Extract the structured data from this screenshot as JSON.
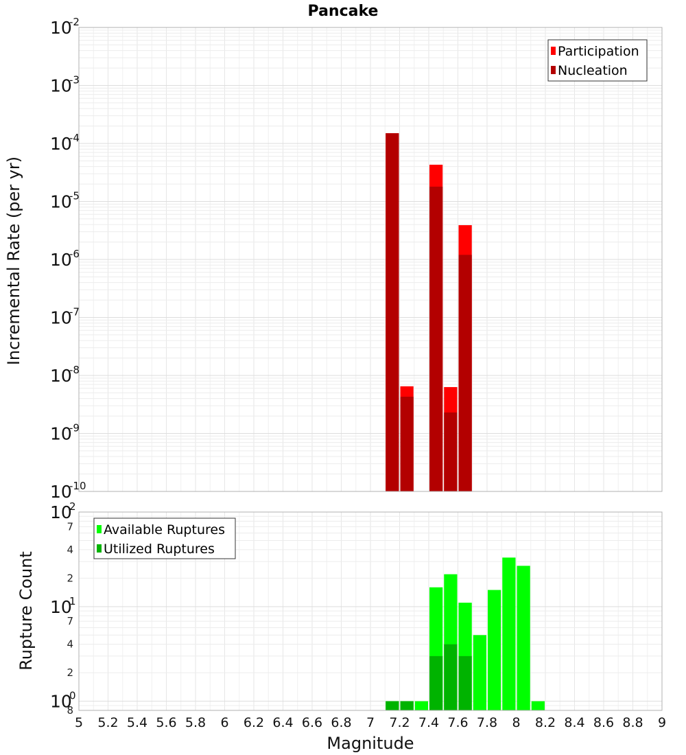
{
  "chart_data": [
    {
      "type": "bar",
      "title": "Pancake",
      "xlabel": "",
      "ylabel": "Incremental Rate (per yr)",
      "yscale": "log",
      "ylim": [
        1e-10,
        0.01
      ],
      "xlim": [
        5,
        9
      ],
      "yticks": [
        {
          "base": "10",
          "exp": "-2",
          "value": 0.01
        },
        {
          "base": "10",
          "exp": "-3",
          "value": 0.001
        },
        {
          "base": "10",
          "exp": "-4",
          "value": 0.0001
        },
        {
          "base": "10",
          "exp": "-5",
          "value": 1e-05
        },
        {
          "base": "10",
          "exp": "-6",
          "value": 1e-06
        },
        {
          "base": "10",
          "exp": "-7",
          "value": 1e-07
        },
        {
          "base": "10",
          "exp": "-8",
          "value": 1e-08
        },
        {
          "base": "10",
          "exp": "-9",
          "value": 1e-09
        },
        {
          "base": "10",
          "exp": "-10",
          "value": 1e-10
        }
      ],
      "legend": {
        "position": "top-right",
        "entries": [
          {
            "label": "Participation",
            "color": "#ff0000"
          },
          {
            "label": "Nucleation",
            "color": "#b30000"
          }
        ]
      },
      "series": [
        {
          "name": "Participation",
          "color": "#ff0000",
          "x": [
            7.15,
            7.25,
            7.45,
            7.55,
            7.65
          ],
          "values": [
            0.00015,
            6.5e-09,
            4.3e-05,
            6.3e-09,
            3.9e-06
          ]
        },
        {
          "name": "Nucleation",
          "color": "#b30000",
          "x": [
            7.15,
            7.25,
            7.45,
            7.55,
            7.65
          ],
          "values": [
            0.00015,
            4.3e-09,
            1.8e-05,
            2.3e-09,
            1.2e-06
          ]
        }
      ]
    },
    {
      "type": "bar",
      "title": "",
      "xlabel": "Magnitude",
      "ylabel": "Rupture Count",
      "yscale": "log",
      "ylim": [
        0.8,
        100
      ],
      "xlim": [
        5,
        9
      ],
      "xticks": [
        "5",
        "5.2",
        "5.4",
        "5.6",
        "5.8",
        "6",
        "6.2",
        "6.4",
        "6.6",
        "6.8",
        "7",
        "7.2",
        "7.4",
        "7.6",
        "7.8",
        "8",
        "8.2",
        "8.4",
        "8.6",
        "8.8",
        "9"
      ],
      "yticks": [
        {
          "base": "10",
          "exp": "2",
          "value": 100
        },
        {
          "base": "10",
          "exp": "1",
          "value": 10
        },
        {
          "base": "10",
          "exp": "0",
          "value": 1
        }
      ],
      "yminor_labels": [
        {
          "label": "7",
          "value": 70
        },
        {
          "label": "4",
          "value": 40
        },
        {
          "label": "2",
          "value": 20
        },
        {
          "label": "7",
          "value": 7
        },
        {
          "label": "4",
          "value": 4
        },
        {
          "label": "2",
          "value": 2
        },
        {
          "label": "8",
          "value": 0.8
        }
      ],
      "legend": {
        "position": "top-left",
        "entries": [
          {
            "label": "Available Ruptures",
            "color": "#00ff00"
          },
          {
            "label": "Utilized Ruptures",
            "color": "#00b300"
          }
        ]
      },
      "series": [
        {
          "name": "Available Ruptures",
          "color": "#00ff00",
          "x": [
            7.15,
            7.25,
            7.35,
            7.45,
            7.55,
            7.65,
            7.75,
            7.85,
            7.95,
            8.05,
            8.15
          ],
          "values": [
            1,
            1,
            1,
            16,
            22,
            11,
            5,
            15,
            33,
            27,
            1
          ]
        },
        {
          "name": "Utilized Ruptures",
          "color": "#00b300",
          "x": [
            7.15,
            7.25,
            7.35,
            7.45,
            7.55,
            7.65,
            7.75,
            7.85,
            7.95,
            8.05,
            8.15
          ],
          "values": [
            1,
            1,
            0,
            3,
            4,
            3,
            0,
            0,
            0,
            0,
            0
          ]
        }
      ]
    }
  ]
}
